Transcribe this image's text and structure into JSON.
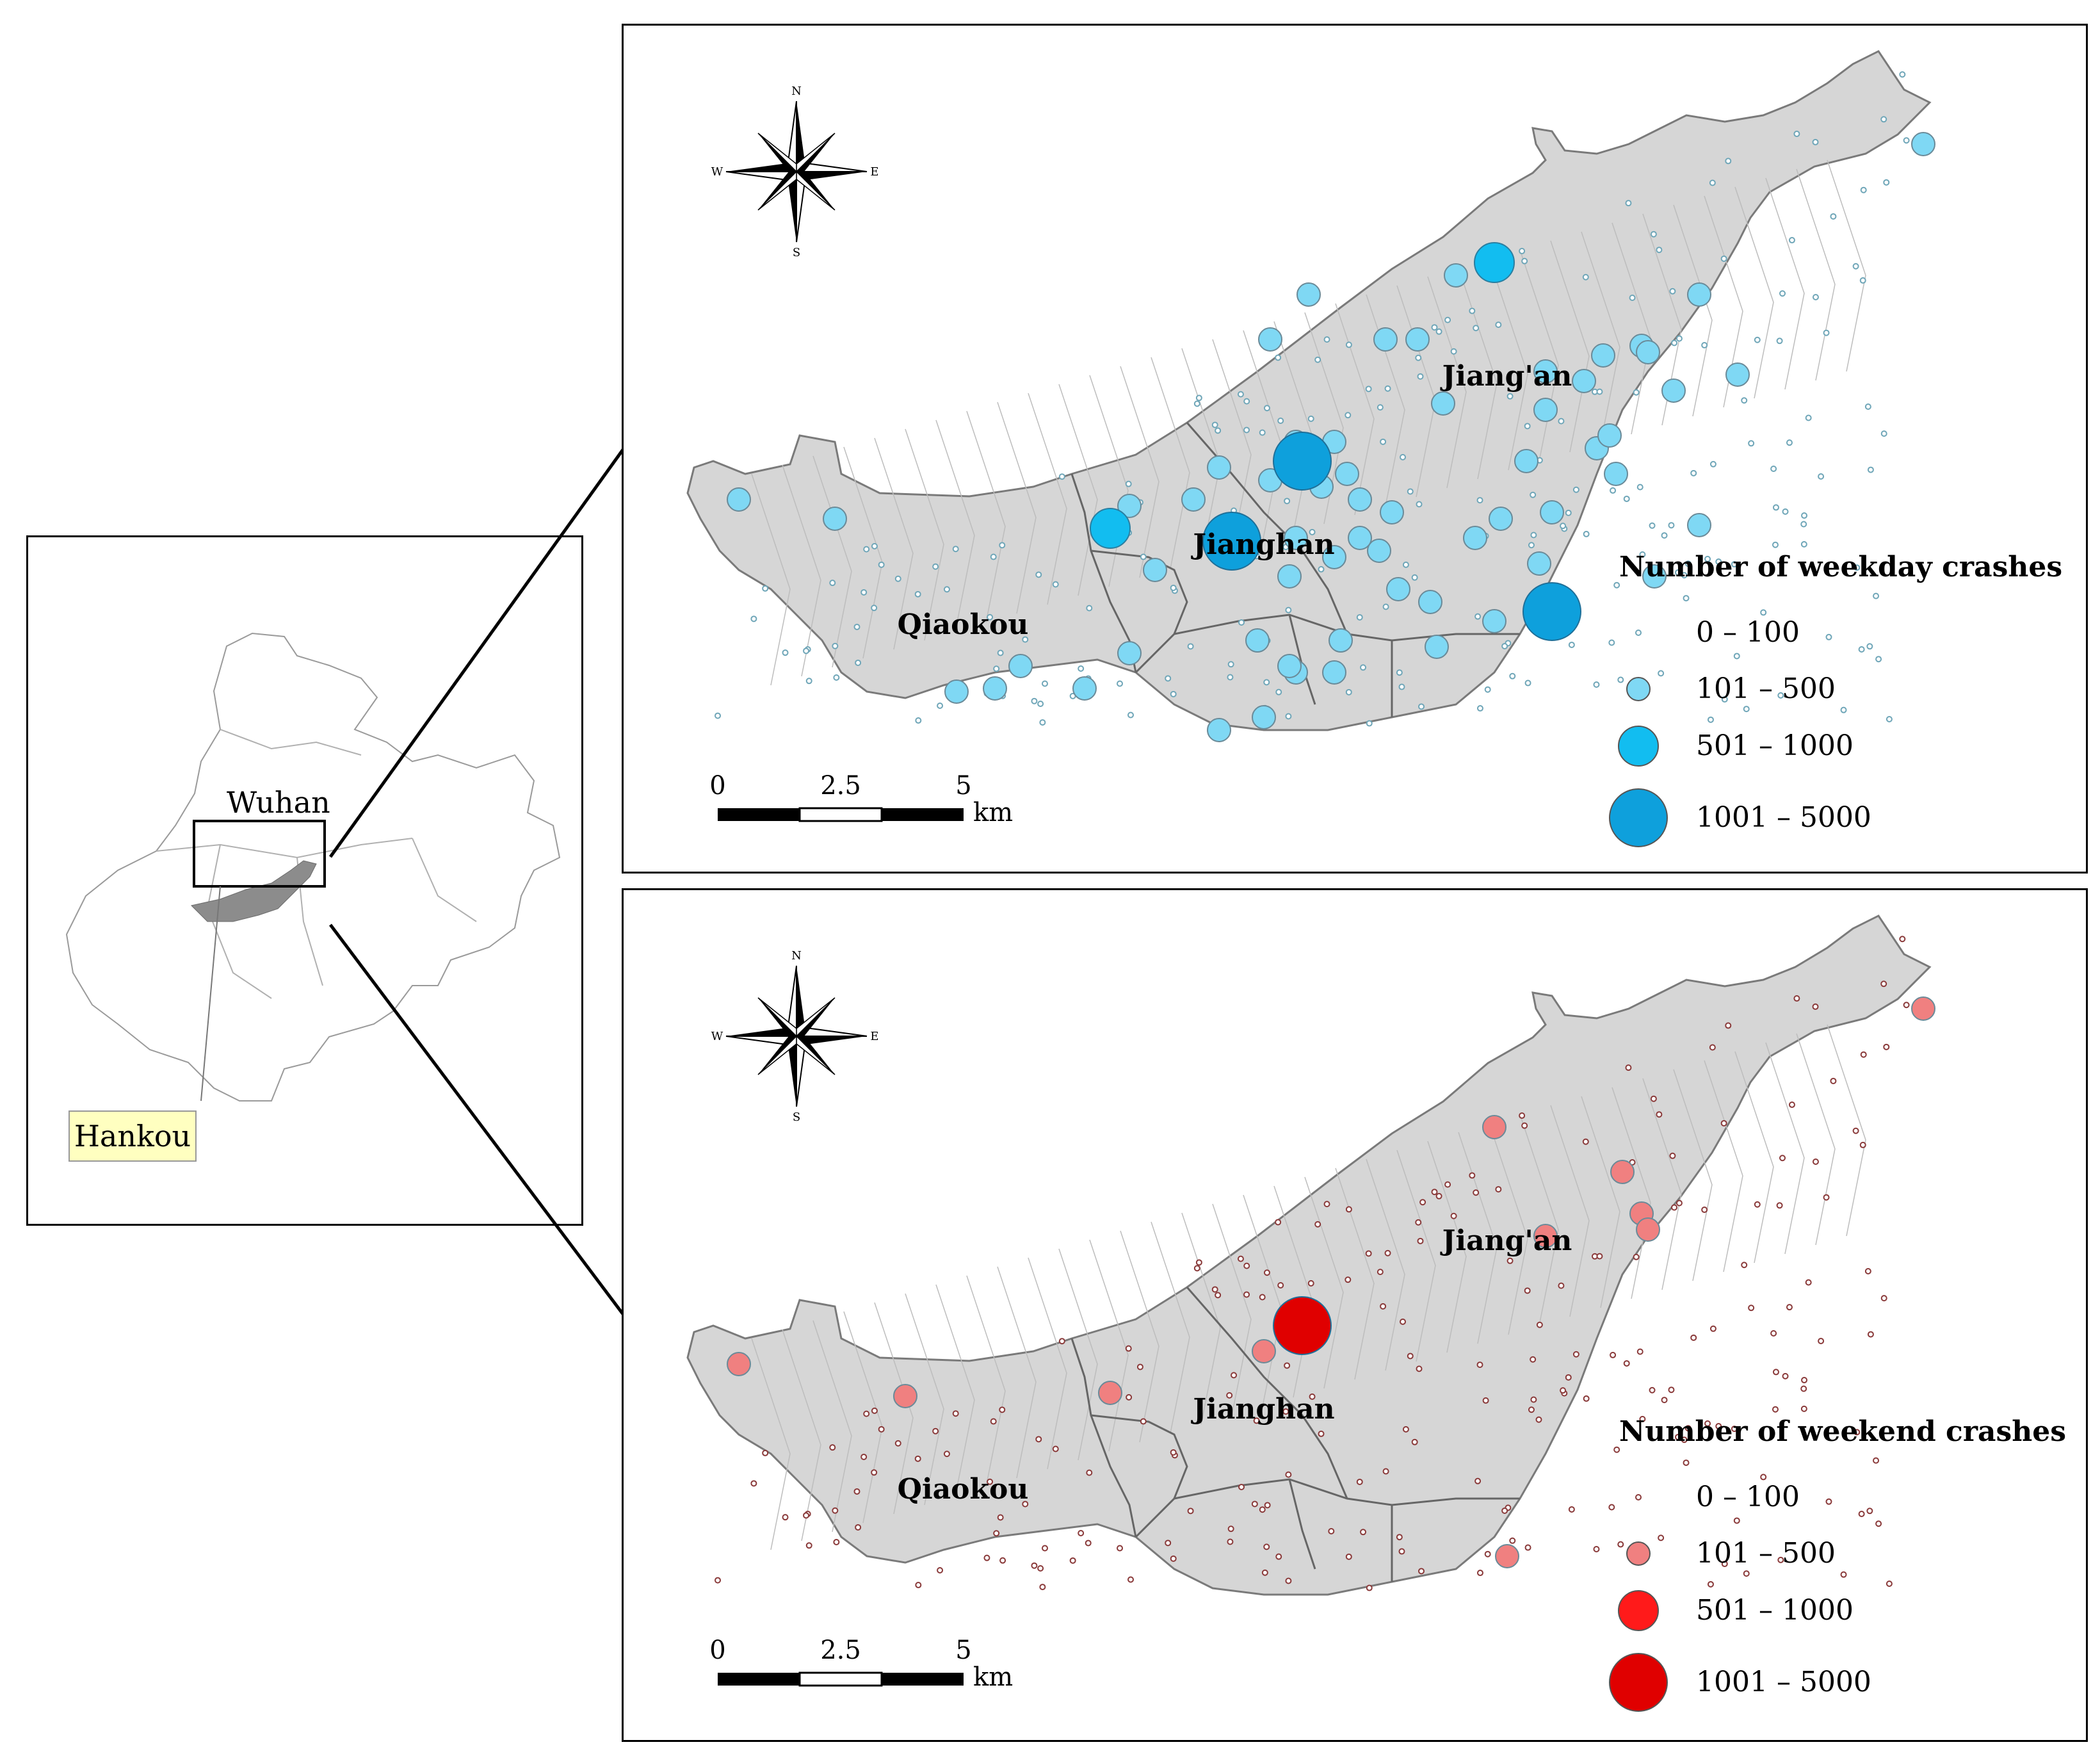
{
  "locator": {
    "city_label": "Wuhan",
    "area_label": "Hankou"
  },
  "compass": {
    "n": "N",
    "s": "S",
    "e": "E",
    "w": "W"
  },
  "districts": [
    "Jiang'an",
    "Jianghan",
    "Qiaokou"
  ],
  "scale_bar": {
    "ticks": [
      "0",
      "2.5",
      "5"
    ],
    "unit": "km"
  },
  "maps": [
    {
      "id": "weekday",
      "legend_title": "Number of weekday crashes",
      "classes": [
        "0 – 100",
        "101 – 500",
        "501 – 1000",
        "1001 – 5000"
      ],
      "colors": [
        "#6fa6b8",
        "#7fd8f4",
        "#12bdf0",
        "#0ea0dc"
      ]
    },
    {
      "id": "weekend",
      "legend_title": "Number of weekend crashes",
      "classes": [
        "0 – 100",
        "101 – 500",
        "501 – 1000",
        "1001 – 5000"
      ],
      "colors": [
        "#8a3a3a",
        "#f08080",
        "#ff1a1a",
        "#e00000"
      ]
    }
  ]
}
